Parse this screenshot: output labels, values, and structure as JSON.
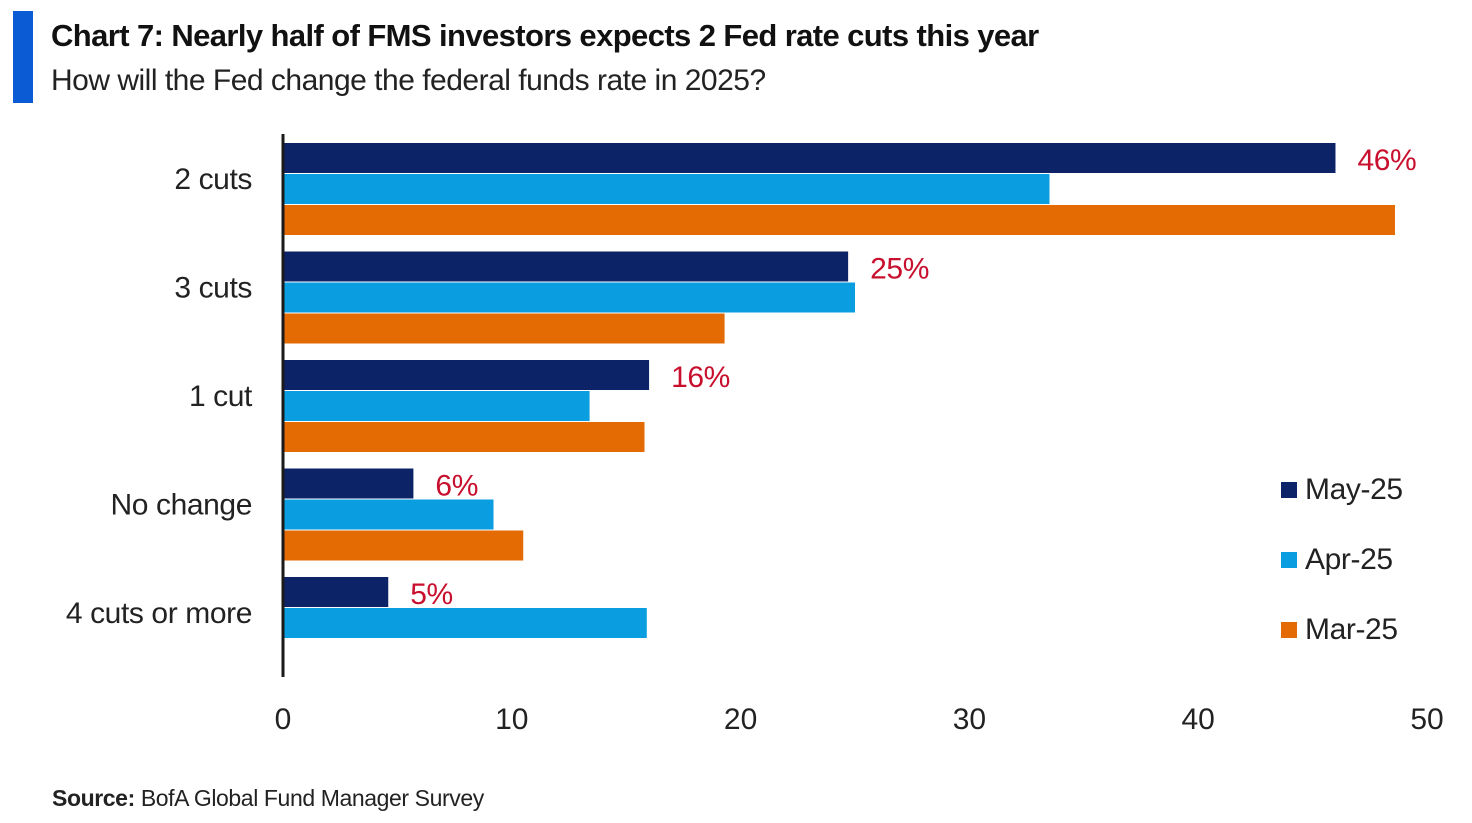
{
  "header": {
    "title": "Chart 7: Nearly half of FMS investors expects 2 Fed rate cuts this year",
    "subtitle": "How will the Fed change the federal funds rate in 2025?"
  },
  "footer": {
    "source_label": "Source:",
    "source_text": "BofA Global Fund Manager Survey"
  },
  "chart_data": {
    "type": "bar",
    "orientation": "horizontal",
    "title": "Chart 7: Nearly half of FMS investors expects 2 Fed rate cuts this year",
    "subtitle": "How will the Fed change the federal funds rate in 2025?",
    "xlabel": "",
    "ylabel": "",
    "xlim": [
      0,
      50
    ],
    "x_ticks": [
      0,
      10,
      20,
      30,
      40,
      50
    ],
    "grid": false,
    "legend_position": "right",
    "categories": [
      "2 cuts",
      "3 cuts",
      "1 cut",
      "No change",
      "4 cuts or more"
    ],
    "series": [
      {
        "name": "May-25",
        "color": "#0c2368",
        "values": [
          46,
          24.7,
          16,
          5.7,
          4.6
        ]
      },
      {
        "name": "Apr-25",
        "color": "#0a9ee0",
        "values": [
          33.5,
          25,
          13.4,
          9.2,
          15.9
        ]
      },
      {
        "name": "Mar-25",
        "color": "#e46a04",
        "values": [
          48.6,
          19.3,
          15.8,
          10.5,
          null
        ]
      }
    ],
    "annotations": [
      {
        "category": "2 cuts",
        "series": "May-25",
        "text": "46%"
      },
      {
        "category": "3 cuts",
        "series": "May-25",
        "text": "25%"
      },
      {
        "category": "1 cut",
        "series": "May-25",
        "text": "16%"
      },
      {
        "category": "No change",
        "series": "May-25",
        "text": "6%"
      },
      {
        "category": "4 cuts or more",
        "series": "May-25",
        "text": "5%"
      }
    ],
    "annotation_color": "#c8102e"
  }
}
